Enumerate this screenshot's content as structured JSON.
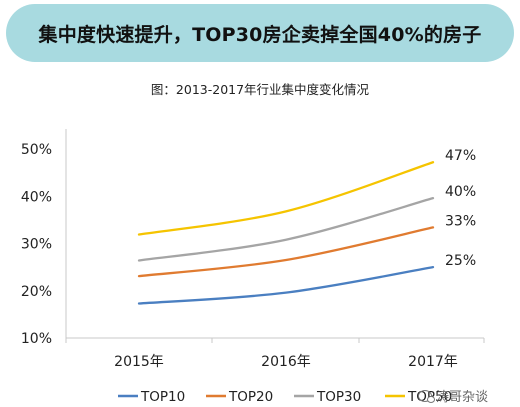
{
  "banner": {
    "title": "集中度快速提升，TOP30房企卖掉全国40%的房子"
  },
  "caption": "图：2013-2017年行业集中度变化情况",
  "watermark": {
    "text": "涛哥杂谈",
    "icon": "wechat-icon"
  },
  "chart_data": {
    "type": "line",
    "title": "",
    "xlabel": "",
    "ylabel": "",
    "categories": [
      "2015年",
      "2016年",
      "2017年"
    ],
    "ylim": [
      10,
      50
    ],
    "yticks": [
      "10%",
      "20%",
      "30%",
      "40%",
      "50%"
    ],
    "ytick_values": [
      10,
      20,
      30,
      40,
      50
    ],
    "grid": false,
    "legend_position": "bottom",
    "series": [
      {
        "name": "TOP10",
        "values": [
          17.3,
          19.6,
          25.0
        ],
        "color": "#4a7fc1",
        "end_label": "25%"
      },
      {
        "name": "TOP20",
        "values": [
          23.1,
          26.5,
          33.4
        ],
        "color": "#e07b30",
        "end_label": "33%"
      },
      {
        "name": "TOP30",
        "values": [
          26.4,
          30.8,
          39.6
        ],
        "color": "#a5a5a5",
        "end_label": "40%"
      },
      {
        "name": "TOP50",
        "values": [
          31.9,
          36.8,
          47.2
        ],
        "color": "#f5c400",
        "end_label": "47%"
      }
    ]
  }
}
